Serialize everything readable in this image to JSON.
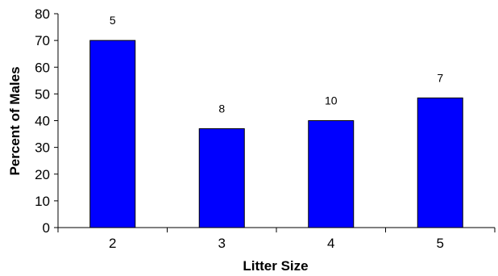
{
  "chart_data": {
    "type": "bar",
    "title": "",
    "xlabel": "Litter Size",
    "ylabel": "Percent of Males",
    "categories": [
      "2",
      "3",
      "4",
      "5"
    ],
    "values": [
      70,
      37,
      40,
      48.5
    ],
    "data_labels": [
      "5",
      "8",
      "10",
      "7"
    ],
    "ylim": [
      0,
      80
    ],
    "yticks": [
      "0",
      "10",
      "20",
      "30",
      "40",
      "50",
      "60",
      "70",
      "80"
    ],
    "grid": false,
    "legend": "none",
    "bar_color": "#0000ff",
    "bar_edge_color": "#000000"
  }
}
